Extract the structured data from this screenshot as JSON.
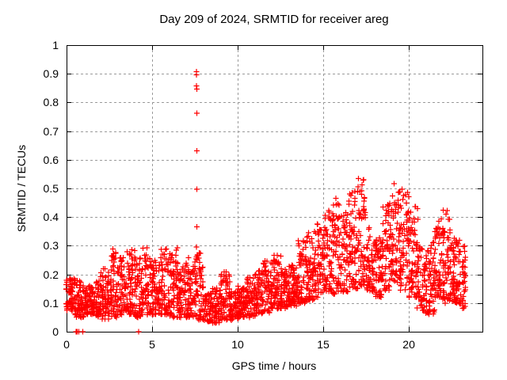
{
  "chart_data": {
    "type": "scatter",
    "title": "Day 209 of 2024, SRMTID for receiver areg",
    "xlabel": "GPS time / hours",
    "ylabel": "SRMTID / TECUs",
    "xlim": [
      0,
      24.3
    ],
    "ylim": [
      0,
      1
    ],
    "grid": true,
    "legend": "none",
    "marker": "plus",
    "point_color": "#ff0000",
    "grid_color": "#9a9a9a",
    "axis_color": "#000000",
    "background_color": "#ffffff",
    "xticks": [
      {
        "v": 0,
        "label": "0"
      },
      {
        "v": 5,
        "label": "5"
      },
      {
        "v": 10,
        "label": "10"
      },
      {
        "v": 15,
        "label": "15"
      },
      {
        "v": 20,
        "label": "20"
      }
    ],
    "yticks": [
      {
        "v": 0.0,
        "label": "0"
      },
      {
        "v": 0.1,
        "label": "0.1"
      },
      {
        "v": 0.2,
        "label": "0.2"
      },
      {
        "v": 0.3,
        "label": "0.3"
      },
      {
        "v": 0.4,
        "label": "0.4"
      },
      {
        "v": 0.5,
        "label": "0.5"
      },
      {
        "v": 0.6,
        "label": "0.6"
      },
      {
        "v": 0.7,
        "label": "0.7"
      },
      {
        "v": 0.8,
        "label": "0.8"
      },
      {
        "v": 0.9,
        "label": "0.9"
      },
      {
        "v": 1.0,
        "label": "1"
      }
    ],
    "envelope_bins": {
      "description": "Dense scatter of ~2800 points, hours 0-23.3; each bin: [start_hour, min_value, max_value, point_count, optional_bin_width]",
      "bin_width": 0.5,
      "bins": [
        [
          0.0,
          0.07,
          0.19,
          60
        ],
        [
          0.5,
          0.05,
          0.18,
          60
        ],
        [
          1.0,
          0.06,
          0.17,
          60
        ],
        [
          1.5,
          0.05,
          0.18,
          60
        ],
        [
          2.0,
          0.04,
          0.22,
          60
        ],
        [
          2.5,
          0.05,
          0.29,
          60
        ],
        [
          3.0,
          0.06,
          0.26,
          60
        ],
        [
          3.5,
          0.06,
          0.3,
          60
        ],
        [
          4.0,
          0.05,
          0.26,
          60
        ],
        [
          4.5,
          0.06,
          0.3,
          60
        ],
        [
          5.0,
          0.06,
          0.25,
          60
        ],
        [
          5.5,
          0.06,
          0.29,
          60
        ],
        [
          6.0,
          0.05,
          0.3,
          60
        ],
        [
          6.5,
          0.05,
          0.24,
          60
        ],
        [
          7.0,
          0.05,
          0.26,
          60
        ],
        [
          7.5,
          0.04,
          0.28,
          60
        ],
        [
          8.0,
          0.035,
          0.14,
          55
        ],
        [
          8.5,
          0.03,
          0.16,
          55
        ],
        [
          9.0,
          0.04,
          0.21,
          60
        ],
        [
          9.5,
          0.04,
          0.14,
          60
        ],
        [
          10.0,
          0.05,
          0.16,
          60
        ],
        [
          10.5,
          0.05,
          0.19,
          60
        ],
        [
          11.0,
          0.06,
          0.22,
          60
        ],
        [
          11.5,
          0.06,
          0.25,
          60
        ],
        [
          12.0,
          0.08,
          0.27,
          60
        ],
        [
          12.5,
          0.08,
          0.22,
          60
        ],
        [
          13.0,
          0.09,
          0.24,
          60
        ],
        [
          13.5,
          0.1,
          0.32,
          60
        ],
        [
          14.0,
          0.11,
          0.35,
          60
        ],
        [
          14.5,
          0.12,
          0.38,
          60
        ],
        [
          15.0,
          0.14,
          0.44,
          60
        ],
        [
          15.5,
          0.13,
          0.47,
          60
        ],
        [
          16.0,
          0.14,
          0.42,
          60
        ],
        [
          16.5,
          0.15,
          0.5,
          60
        ],
        [
          17.0,
          0.16,
          0.535,
          60
        ],
        [
          17.5,
          0.14,
          0.4,
          60
        ],
        [
          18.0,
          0.12,
          0.33,
          60
        ],
        [
          18.5,
          0.14,
          0.45,
          60
        ],
        [
          19.0,
          0.17,
          0.52,
          60
        ],
        [
          19.5,
          0.14,
          0.5,
          60
        ],
        [
          20.0,
          0.12,
          0.44,
          60
        ],
        [
          20.5,
          0.07,
          0.3,
          60
        ],
        [
          21.0,
          0.06,
          0.33,
          60
        ],
        [
          21.5,
          0.11,
          0.4,
          60
        ],
        [
          22.0,
          0.1,
          0.43,
          60
        ],
        [
          22.5,
          0.1,
          0.33,
          60
        ],
        [
          23.0,
          0.08,
          0.3,
          40,
          0.33
        ]
      ]
    },
    "spike_outliers": {
      "description": "Isolated vertical spike near hour 7.6, values as [hour, value]",
      "points": [
        [
          7.59,
          0.908
        ],
        [
          7.6,
          0.897
        ],
        [
          7.6,
          0.858
        ],
        [
          7.62,
          0.846
        ],
        [
          7.61,
          0.762
        ],
        [
          7.62,
          0.631
        ],
        [
          7.61,
          0.497
        ],
        [
          7.62,
          0.366
        ],
        [
          7.6,
          0.296
        ],
        [
          7.63,
          0.252
        ]
      ]
    },
    "zero_value_points": [
      [
        0.56,
        0.0
      ],
      [
        0.6,
        0.0
      ],
      [
        0.63,
        0.0
      ],
      [
        0.71,
        0.0
      ],
      [
        0.95,
        0.0
      ],
      [
        4.21,
        0.0
      ]
    ],
    "low_outliers": [
      [
        2.08,
        0.044
      ],
      [
        2.92,
        0.05
      ],
      [
        21.0,
        0.065
      ]
    ]
  }
}
